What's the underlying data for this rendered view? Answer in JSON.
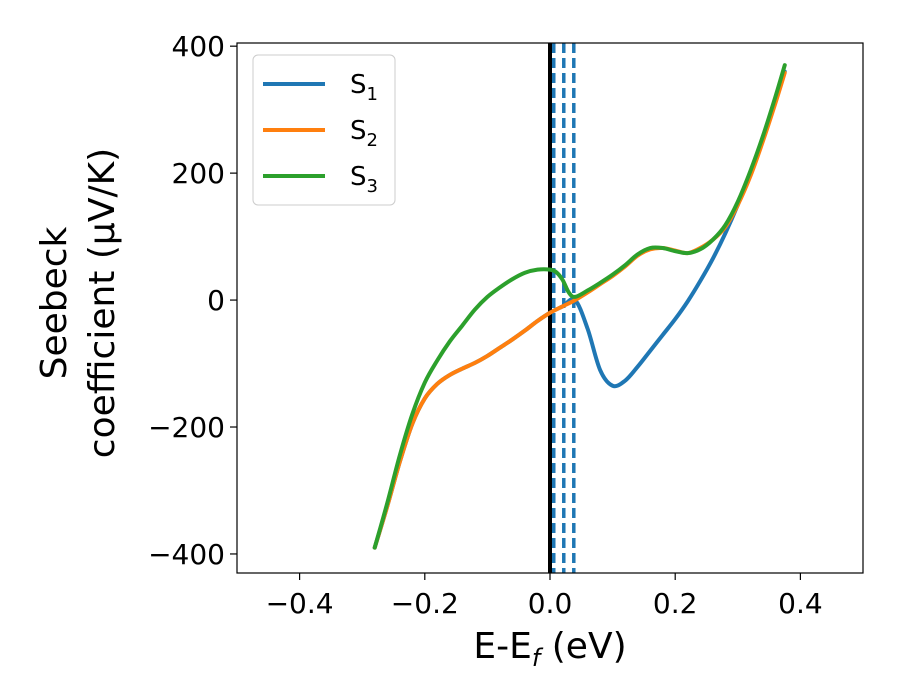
{
  "chart_data": {
    "type": "line",
    "title": "",
    "xlabel": {
      "main": "E-E",
      "sub": "f",
      "unit": " (eV)"
    },
    "ylabel": {
      "line1": "Seebeck",
      "line2": "coefficient  (μV/K)"
    },
    "xlim": [
      -0.5,
      0.5
    ],
    "ylim": [
      -430,
      405
    ],
    "xticks": [
      -0.4,
      -0.2,
      0.0,
      0.2,
      0.4
    ],
    "xtick_labels": [
      "−0.4",
      "−0.2",
      "0.0",
      "0.2",
      "0.4"
    ],
    "yticks": [
      -400,
      -200,
      0,
      200,
      400
    ],
    "ytick_labels": [
      "−400",
      "−200",
      "0",
      "200",
      "400"
    ],
    "grid": false,
    "legend_position": "top-left",
    "vlines": [
      {
        "x": 0.0,
        "style": "solid",
        "color": "#000000"
      },
      {
        "x": 0.006,
        "style": "dashed",
        "color": "#1f77b4"
      },
      {
        "x": 0.022,
        "style": "dashed",
        "color": "#1f77b4"
      },
      {
        "x": 0.038,
        "style": "dashed",
        "color": "#1f77b4"
      }
    ],
    "series": [
      {
        "name": "S",
        "sub": "1",
        "color": "#1f77b4",
        "x": [
          -0.28,
          -0.26,
          -0.24,
          -0.22,
          -0.2,
          -0.18,
          -0.16,
          -0.14,
          -0.12,
          -0.1,
          -0.08,
          -0.06,
          -0.04,
          -0.02,
          0.0,
          0.02,
          0.04,
          0.06,
          0.08,
          0.1,
          0.12,
          0.14,
          0.16,
          0.18,
          0.2,
          0.22,
          0.24,
          0.26,
          0.28,
          0.3,
          0.32,
          0.34,
          0.36,
          0.375
        ],
        "y": [
          -390,
          -325,
          -255,
          -195,
          -155,
          -132,
          -118,
          -108,
          -99,
          -88,
          -75,
          -62,
          -48,
          -33,
          -20,
          -10,
          0,
          -45,
          -110,
          -135,
          -127,
          -105,
          -80,
          -55,
          -30,
          -2,
          30,
          65,
          105,
          150,
          200,
          255,
          315,
          360
        ]
      },
      {
        "name": "S",
        "sub": "2",
        "color": "#ff7f0e",
        "x": [
          -0.28,
          -0.26,
          -0.24,
          -0.22,
          -0.2,
          -0.18,
          -0.16,
          -0.14,
          -0.12,
          -0.1,
          -0.08,
          -0.06,
          -0.04,
          -0.02,
          0.0,
          0.02,
          0.04,
          0.06,
          0.08,
          0.1,
          0.12,
          0.14,
          0.16,
          0.18,
          0.2,
          0.22,
          0.24,
          0.26,
          0.28,
          0.3,
          0.32,
          0.34,
          0.36,
          0.375
        ],
        "y": [
          -390,
          -325,
          -255,
          -195,
          -155,
          -132,
          -118,
          -108,
          -99,
          -88,
          -75,
          -62,
          -48,
          -33,
          -20,
          -10,
          0,
          12,
          25,
          38,
          53,
          70,
          80,
          82,
          78,
          74,
          82,
          95,
          115,
          150,
          195,
          250,
          310,
          358
        ]
      },
      {
        "name": "S",
        "sub": "3",
        "color": "#2ca02c",
        "x": [
          -0.28,
          -0.26,
          -0.24,
          -0.22,
          -0.2,
          -0.18,
          -0.16,
          -0.14,
          -0.12,
          -0.1,
          -0.08,
          -0.06,
          -0.04,
          -0.02,
          0.0,
          0.01,
          0.02,
          0.03,
          0.04,
          0.06,
          0.08,
          0.1,
          0.12,
          0.14,
          0.16,
          0.18,
          0.2,
          0.22,
          0.24,
          0.26,
          0.28,
          0.3,
          0.32,
          0.34,
          0.36,
          0.375
        ],
        "y": [
          -390,
          -320,
          -245,
          -180,
          -130,
          -95,
          -65,
          -40,
          -15,
          5,
          20,
          33,
          43,
          48,
          48,
          44,
          32,
          12,
          5,
          15,
          27,
          40,
          55,
          72,
          82,
          82,
          77,
          74,
          80,
          95,
          118,
          155,
          203,
          258,
          320,
          370
        ]
      }
    ]
  }
}
